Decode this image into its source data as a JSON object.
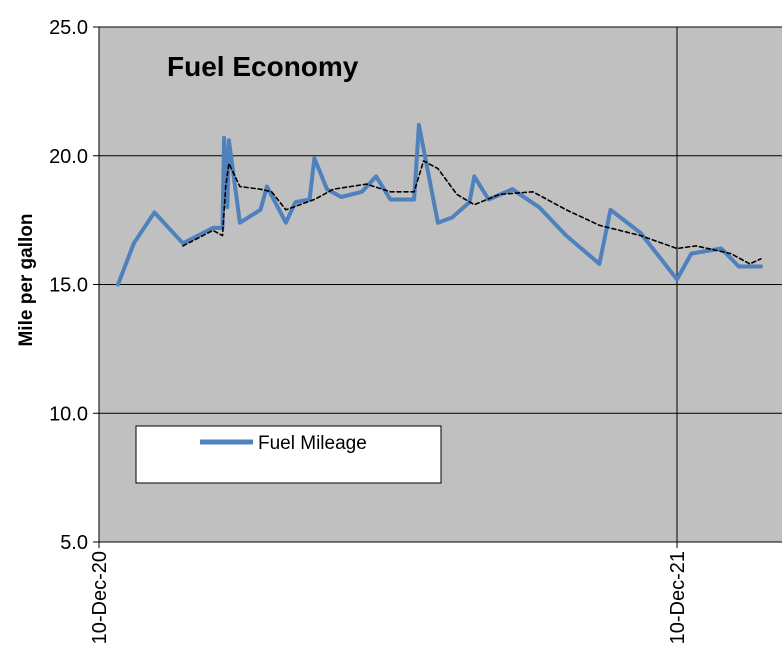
{
  "chart_data": {
    "type": "line",
    "title": "Fuel Economy",
    "ylabel": "Mile per gallon",
    "xlabel": "",
    "ylim": [
      5.0,
      25.0
    ],
    "yticks": [
      "5.0",
      "10.0",
      "15.0",
      "20.0",
      "25.0"
    ],
    "xlim": [
      "2020-12-10",
      "2022-02-02"
    ],
    "xticks": [
      "10-Dec-20",
      "10-Dec-21"
    ],
    "grid": true,
    "plot_background": "#c0c0c0",
    "legend": {
      "position": "lower-left",
      "entries": [
        "Fuel Mileage"
      ]
    },
    "series": [
      {
        "name": "Fuel Mileage",
        "color": "#4f81bd",
        "style": "solid",
        "points": [
          [
            "2020-12-22",
            15.0
          ],
          [
            "2021-01-01",
            16.6
          ],
          [
            "2021-01-14",
            17.8
          ],
          [
            "2021-02-01",
            16.6
          ],
          [
            "2021-02-20",
            17.2
          ],
          [
            "2021-02-26",
            17.2
          ],
          [
            "2021-02-27",
            20.7
          ],
          [
            "2021-03-01",
            18.0
          ],
          [
            "2021-03-02",
            20.6
          ],
          [
            "2021-03-09",
            17.4
          ],
          [
            "2021-03-22",
            17.9
          ],
          [
            "2021-03-26",
            18.8
          ],
          [
            "2021-04-07",
            17.4
          ],
          [
            "2021-04-13",
            18.2
          ],
          [
            "2021-04-22",
            18.3
          ],
          [
            "2021-04-25",
            19.9
          ],
          [
            "2021-05-03",
            18.7
          ],
          [
            "2021-05-12",
            18.4
          ],
          [
            "2021-05-25",
            18.6
          ],
          [
            "2021-06-03",
            19.2
          ],
          [
            "2021-06-12",
            18.3
          ],
          [
            "2021-06-27",
            18.3
          ],
          [
            "2021-06-30",
            21.2
          ],
          [
            "2021-07-12",
            17.4
          ],
          [
            "2021-07-21",
            17.6
          ],
          [
            "2021-08-01",
            18.2
          ],
          [
            "2021-08-04",
            19.2
          ],
          [
            "2021-08-13",
            18.3
          ],
          [
            "2021-08-28",
            18.7
          ],
          [
            "2021-09-14",
            18.0
          ],
          [
            "2021-10-01",
            16.9
          ],
          [
            "2021-10-22",
            15.8
          ],
          [
            "2021-10-29",
            17.9
          ],
          [
            "2021-11-17",
            17.0
          ],
          [
            "2021-12-10",
            15.2
          ],
          [
            "2021-12-19",
            16.2
          ],
          [
            "2022-01-07",
            16.4
          ],
          [
            "2022-01-18",
            15.7
          ],
          [
            "2022-02-01",
            15.7
          ]
        ]
      },
      {
        "color": "#000000",
        "style": "dashed",
        "points": [
          [
            "2021-02-01",
            16.5
          ],
          [
            "2021-02-20",
            17.1
          ],
          [
            "2021-02-26",
            16.9
          ],
          [
            "2021-02-28",
            18.8
          ],
          [
            "2021-03-02",
            19.7
          ],
          [
            "2021-03-09",
            18.8
          ],
          [
            "2021-03-22",
            18.7
          ],
          [
            "2021-03-29",
            18.6
          ],
          [
            "2021-04-07",
            17.9
          ],
          [
            "2021-04-25",
            18.3
          ],
          [
            "2021-05-07",
            18.7
          ],
          [
            "2021-05-28",
            18.9
          ],
          [
            "2021-06-12",
            18.6
          ],
          [
            "2021-06-27",
            18.6
          ],
          [
            "2021-07-03",
            19.8
          ],
          [
            "2021-07-12",
            19.5
          ],
          [
            "2021-07-24",
            18.5
          ],
          [
            "2021-08-04",
            18.1
          ],
          [
            "2021-08-20",
            18.5
          ],
          [
            "2021-09-10",
            18.6
          ],
          [
            "2021-10-01",
            17.9
          ],
          [
            "2021-10-22",
            17.3
          ],
          [
            "2021-11-17",
            16.9
          ],
          [
            "2021-12-10",
            16.4
          ],
          [
            "2021-12-22",
            16.5
          ],
          [
            "2022-01-13",
            16.2
          ],
          [
            "2022-01-25",
            15.8
          ],
          [
            "2022-02-01",
            16.0
          ]
        ]
      }
    ]
  }
}
